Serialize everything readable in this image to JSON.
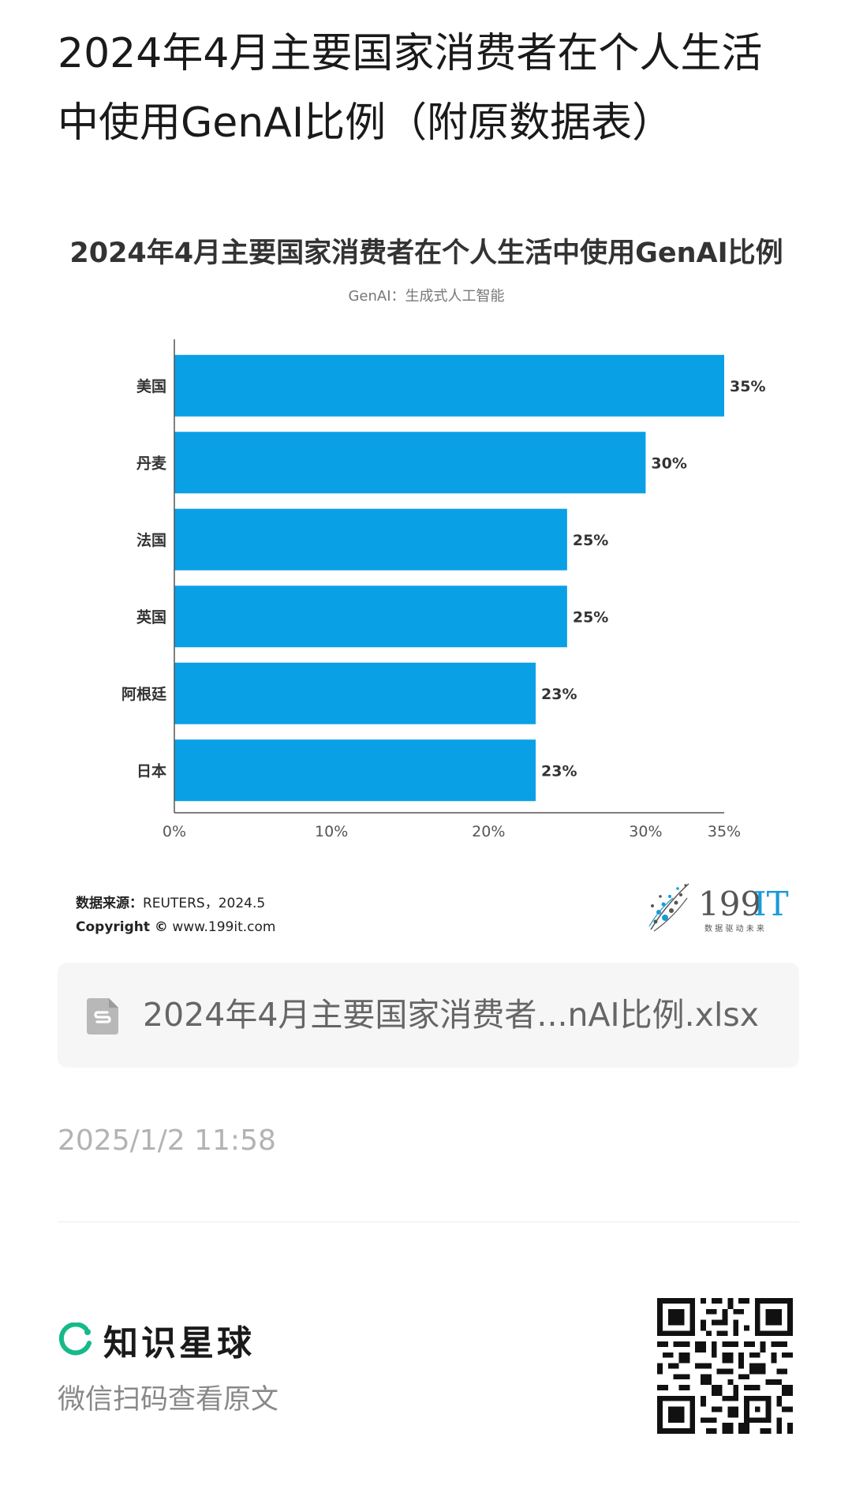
{
  "post": {
    "title": "2024年4月主要国家消费者在个人生活中使用GenAI比例（附原数据表）"
  },
  "chart": {
    "title": "2024年4月主要国家消费者在个人生活中使用GenAI比例",
    "subtitle": "GenAI：生成式人工智能",
    "source_label": "数据来源：",
    "source_value": "REUTERS，2024.5",
    "copyright_label": "Copyright ©",
    "copyright_value": " www.199it.com",
    "bar_color": "#0aa0e6",
    "logo_text_main": "199",
    "logo_text_accent": "IT",
    "logo_tagline": "数 据 驱 动 未 来"
  },
  "chart_data": {
    "type": "bar",
    "orientation": "horizontal",
    "categories": [
      "美国",
      "丹麦",
      "法国",
      "英国",
      "阿根廷",
      "日本"
    ],
    "values": [
      35,
      30,
      25,
      25,
      23,
      23
    ],
    "value_labels": [
      "35%",
      "30%",
      "25%",
      "25%",
      "23%",
      "23%"
    ],
    "xlim": [
      0,
      35
    ],
    "xticks": [
      0,
      10,
      20,
      30,
      35
    ],
    "xtick_labels": [
      "0%",
      "10%",
      "20%",
      "30%",
      "35%"
    ],
    "title": "2024年4月主要国家消费者在个人生活中使用GenAI比例",
    "subtitle": "GenAI：生成式人工智能",
    "grid": false
  },
  "attachment": {
    "file_name": "2024年4月主要国家消费者...nAI比例.xlsx",
    "icon": "spreadsheet-file-icon"
  },
  "meta": {
    "timestamp": "2025/1/2 11:58"
  },
  "footer": {
    "brand_name": "知识星球",
    "scan_text": "微信扫码查看原文",
    "brand_color": "#16b98a"
  }
}
